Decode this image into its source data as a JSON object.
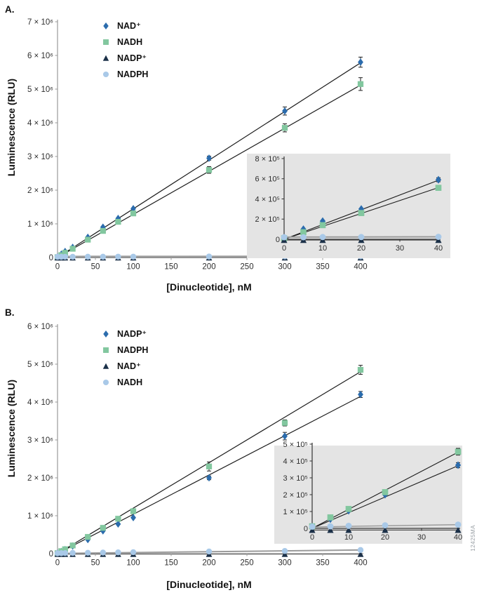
{
  "figure": {
    "panel_a_label": "A.",
    "panel_b_label": "B.",
    "watermark": "12425MA",
    "inset_background": "#e4e4e4",
    "colors": {
      "blue_diamond": "#2b6cad",
      "green_square": "#82c79f",
      "navy_triangle": "#1b3048",
      "lightblue_circle": "#a9c9e8",
      "fit_black": "#1c1c1c",
      "fit_gray": "#9b9b9b"
    }
  },
  "chart_data": [
    {
      "id": "panel-a-main",
      "type": "scatter",
      "title": "",
      "xlabel": "[Dinucleotide], nM",
      "ylabel": "Luminescence (RLU)",
      "xlim": [
        0,
        400
      ],
      "ylim": [
        0,
        7000000
      ],
      "grid": "off",
      "legend_position": "upper-left-inside",
      "xticks": {
        "values": [
          0,
          50,
          100,
          150,
          200,
          250,
          300,
          350,
          400
        ],
        "labels": [
          "0",
          "50",
          "100",
          "150",
          "200",
          "250",
          "300",
          "350",
          "400"
        ]
      },
      "yticks": {
        "values": [
          0,
          1000000,
          2000000,
          3000000,
          4000000,
          5000000,
          6000000,
          7000000
        ],
        "labels": [
          "0",
          "1 × 10⁶",
          "2 × 10⁶",
          "3 × 10⁶",
          "4 × 10⁶",
          "5 × 10⁶",
          "6 × 10⁶",
          "7 × 10⁶"
        ]
      },
      "x": [
        0,
        5,
        10,
        20,
        40,
        60,
        80,
        100,
        200,
        300,
        400
      ],
      "series": [
        {
          "name": "NAD⁺",
          "marker": "diamond",
          "color": "#2b6cad",
          "values": [
            15000,
            100000,
            180000,
            300000,
            600000,
            900000,
            1160000,
            1450000,
            2950000,
            4350000,
            5800000
          ],
          "errors": [
            0,
            0,
            0,
            0,
            0,
            0,
            0,
            0,
            60000,
            120000,
            150000
          ],
          "fit": {
            "x1": 0,
            "y1": 0,
            "x2": 400,
            "y2": 5780000,
            "color": "#1c1c1c",
            "width": 1.2
          }
        },
        {
          "name": "NADH",
          "marker": "square",
          "color": "#82c79f",
          "values": [
            10000,
            70000,
            140000,
            260000,
            530000,
            790000,
            1060000,
            1310000,
            2600000,
            3850000,
            5150000
          ],
          "errors": [
            0,
            0,
            0,
            0,
            0,
            0,
            0,
            0,
            100000,
            120000,
            190000
          ],
          "fit": {
            "x1": 0,
            "y1": 0,
            "x2": 400,
            "y2": 5120000,
            "color": "#1c1c1c",
            "width": 1.2
          }
        },
        {
          "name": "NADP⁺",
          "marker": "triangle",
          "color": "#1b3048",
          "values": [
            -8000,
            -8000,
            -8000,
            -8000,
            -8000,
            -8000,
            -8000,
            -8000,
            -8000,
            -8000,
            -8000
          ],
          "errors": [
            0,
            0,
            0,
            0,
            0,
            0,
            0,
            0,
            0,
            0,
            0
          ],
          "fit": {
            "x1": 0,
            "y1": -8000,
            "x2": 400,
            "y2": -8000,
            "color": "#4a4a4a",
            "width": 1
          }
        },
        {
          "name": "NADPH",
          "marker": "circle",
          "color": "#a9c9e8",
          "values": [
            20000,
            20000,
            22000,
            22000,
            24000,
            24000,
            25000,
            25000,
            28000,
            30000,
            32000
          ],
          "errors": [
            0,
            0,
            0,
            0,
            0,
            0,
            0,
            0,
            0,
            0,
            0
          ],
          "fit": {
            "x1": 0,
            "y1": 22000,
            "x2": 400,
            "y2": 26000,
            "color": "#9b9b9b",
            "width": 3
          }
        }
      ]
    },
    {
      "id": "panel-a-inset",
      "type": "scatter",
      "title": "",
      "xlabel": "",
      "ylabel": "",
      "background": "#e4e4e4",
      "xlim": [
        0,
        40
      ],
      "ylim": [
        0,
        800000
      ],
      "grid": "off",
      "xticks": {
        "values": [
          0,
          10,
          20,
          30,
          40
        ],
        "labels": [
          "0",
          "10",
          "20",
          "30",
          "40"
        ]
      },
      "yticks": {
        "values": [
          0,
          200000,
          400000,
          600000,
          800000
        ],
        "labels": [
          "0",
          "2 × 10⁵",
          "4 × 10⁵",
          "6 × 10⁵",
          "8 × 10⁵"
        ]
      },
      "x": [
        0,
        5,
        10,
        20,
        40
      ],
      "series": [
        {
          "name": "NAD⁺",
          "marker": "diamond",
          "color": "#2b6cad",
          "values": [
            15000,
            100000,
            180000,
            300000,
            590000
          ],
          "errors": [
            0,
            0,
            0,
            0,
            20000
          ],
          "fit": {
            "x1": 0,
            "y1": 0,
            "x2": 40,
            "y2": 585000,
            "color": "#1c1c1c",
            "width": 1.1
          }
        },
        {
          "name": "NADH",
          "marker": "square",
          "color": "#82c79f",
          "values": [
            10000,
            70000,
            140000,
            260000,
            510000
          ],
          "errors": [
            0,
            0,
            0,
            0,
            15000
          ],
          "fit": {
            "x1": 0,
            "y1": 0,
            "x2": 40,
            "y2": 512000,
            "color": "#1c1c1c",
            "width": 1.1
          }
        },
        {
          "name": "NADP⁺",
          "marker": "triangle",
          "color": "#1b3048",
          "values": [
            -8000,
            -8000,
            -8000,
            -8000,
            -8000
          ],
          "errors": [
            0,
            0,
            0,
            0,
            0
          ],
          "fit": {
            "x1": 0,
            "y1": -8000,
            "x2": 40,
            "y2": -8000,
            "color": "#333333",
            "width": 1
          }
        },
        {
          "name": "NADPH",
          "marker": "circle",
          "color": "#a9c9e8",
          "values": [
            20000,
            20000,
            22000,
            22000,
            24000
          ],
          "errors": [
            0,
            0,
            0,
            0,
            0
          ],
          "fit": {
            "x1": 0,
            "y1": 22000,
            "x2": 40,
            "y2": 24000,
            "color": "#9b9b9b",
            "width": 2
          }
        }
      ]
    },
    {
      "id": "panel-b-main",
      "type": "scatter",
      "title": "",
      "xlabel": "[Dinucleotide], nM",
      "ylabel": "Luminescence (RLU)",
      "xlim": [
        0,
        400
      ],
      "ylim": [
        0,
        6000000
      ],
      "grid": "off",
      "legend_position": "upper-left-inside",
      "xticks": {
        "values": [
          0,
          50,
          100,
          150,
          200,
          250,
          300,
          350,
          400
        ],
        "labels": [
          "0",
          "50",
          "100",
          "150",
          "200",
          "250",
          "300",
          "350",
          "400"
        ]
      },
      "yticks": {
        "values": [
          0,
          1000000,
          2000000,
          3000000,
          4000000,
          5000000,
          6000000
        ],
        "labels": [
          "0",
          "1 × 10⁶",
          "2 × 10⁶",
          "3 × 10⁶",
          "4 × 10⁶",
          "5 × 10⁶",
          "6 × 10⁶"
        ]
      },
      "x": [
        0,
        5,
        10,
        20,
        40,
        60,
        80,
        100,
        200,
        300,
        400
      ],
      "series": [
        {
          "name": "NADP⁺",
          "marker": "diamond",
          "color": "#2b6cad",
          "values": [
            10000,
            55000,
            105000,
            200000,
            370000,
            600000,
            780000,
            950000,
            2000000,
            3100000,
            4200000
          ],
          "errors": [
            0,
            0,
            0,
            0,
            0,
            0,
            0,
            0,
            50000,
            100000,
            80000
          ],
          "fit": {
            "x1": 0,
            "y1": 0,
            "x2": 400,
            "y2": 4150000,
            "color": "#1c1c1c",
            "width": 1.2
          }
        },
        {
          "name": "NADPH",
          "marker": "square",
          "color": "#82c79f",
          "values": [
            12000,
            65000,
            115000,
            215000,
            440000,
            680000,
            920000,
            1120000,
            2300000,
            3450000,
            4850000
          ],
          "errors": [
            0,
            0,
            0,
            0,
            0,
            0,
            0,
            0,
            120000,
            80000,
            120000
          ],
          "fit": {
            "x1": 0,
            "y1": 0,
            "x2": 400,
            "y2": 4800000,
            "color": "#1c1c1c",
            "width": 1.2
          }
        },
        {
          "name": "NAD⁺",
          "marker": "triangle",
          "color": "#1b3048",
          "values": [
            -15000,
            -15000,
            -15000,
            -15000,
            -15000,
            -15000,
            -15000,
            -15000,
            -15000,
            -15000,
            -15000
          ],
          "errors": [
            0,
            0,
            0,
            0,
            0,
            0,
            0,
            0,
            0,
            0,
            0
          ],
          "fit": {
            "x1": 0,
            "y1": -15000,
            "x2": 400,
            "y2": -15000,
            "color": "#2a2a2a",
            "width": 1
          }
        },
        {
          "name": "NADH",
          "marker": "circle",
          "color": "#a9c9e8",
          "values": [
            10000,
            12000,
            15000,
            18000,
            22000,
            28000,
            32000,
            38000,
            55000,
            70000,
            95000
          ],
          "errors": [
            0,
            0,
            0,
            0,
            0,
            0,
            0,
            0,
            0,
            0,
            0
          ],
          "fit": {
            "x1": 0,
            "y1": 5000,
            "x2": 400,
            "y2": 95000,
            "color": "#9b9b9b",
            "width": 2
          }
        }
      ]
    },
    {
      "id": "panel-b-inset",
      "type": "scatter",
      "title": "",
      "xlabel": "",
      "ylabel": "",
      "background": "#e4e4e4",
      "xlim": [
        0,
        40
      ],
      "ylim": [
        0,
        500000
      ],
      "grid": "off",
      "xticks": {
        "values": [
          0,
          10,
          20,
          30,
          40
        ],
        "labels": [
          "0",
          "10",
          "20",
          "30",
          "40"
        ]
      },
      "yticks": {
        "values": [
          0,
          100000,
          200000,
          300000,
          400000,
          500000
        ],
        "labels": [
          "0",
          "1 × 10⁵",
          "2 × 10⁵",
          "3 × 10⁵",
          "4 × 10⁵",
          "5 × 10⁵"
        ]
      },
      "x": [
        0,
        5,
        10,
        20,
        40
      ],
      "series": [
        {
          "name": "NADP⁺",
          "marker": "diamond",
          "color": "#2b6cad",
          "values": [
            10000,
            55000,
            105000,
            200000,
            375000
          ],
          "errors": [
            0,
            0,
            0,
            0,
            15000
          ],
          "fit": {
            "x1": 0,
            "y1": 0,
            "x2": 40,
            "y2": 372000,
            "color": "#1c1c1c",
            "width": 1.1
          }
        },
        {
          "name": "NADPH",
          "marker": "square",
          "color": "#82c79f",
          "values": [
            12000,
            65000,
            115000,
            215000,
            455000
          ],
          "errors": [
            0,
            0,
            0,
            0,
            20000
          ],
          "fit": {
            "x1": 0,
            "y1": 0,
            "x2": 40,
            "y2": 452000,
            "color": "#1c1c1c",
            "width": 1.1
          }
        },
        {
          "name": "NAD⁺",
          "marker": "triangle",
          "color": "#1b3048",
          "values": [
            -10000,
            -10000,
            -10000,
            -10000,
            -10000
          ],
          "errors": [
            0,
            0,
            0,
            0,
            0
          ],
          "fit": {
            "x1": 0,
            "y1": -10000,
            "x2": 40,
            "y2": -10000,
            "color": "#2a2a2a",
            "width": 1
          }
        },
        {
          "name": "NADH",
          "marker": "circle",
          "color": "#a9c9e8",
          "values": [
            10000,
            12000,
            15000,
            18000,
            22000
          ],
          "errors": [
            0,
            0,
            0,
            0,
            0
          ],
          "fit": {
            "x1": 0,
            "y1": 8000,
            "x2": 40,
            "y2": 22000,
            "color": "#9b9b9b",
            "width": 1.5
          }
        }
      ]
    }
  ]
}
